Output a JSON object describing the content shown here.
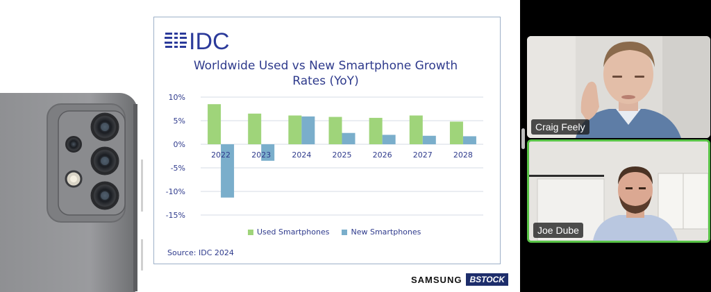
{
  "slide": {
    "logo_text": "IDC",
    "title_line1": "Worldwide Used vs New Smartphone Growth",
    "title_line2": "Rates (YoY)",
    "source": "Source: IDC 2024",
    "brand": {
      "samsung": "SAMSUNG",
      "bstock": "BSTOCK"
    }
  },
  "chart_data": {
    "type": "bar",
    "title": "Worldwide Used vs New Smartphone Growth Rates (YoY)",
    "categories": [
      "2022",
      "2023",
      "2024",
      "2025",
      "2026",
      "2027",
      "2028"
    ],
    "series": [
      {
        "name": "Used Smartphones",
        "color": "#9fd47a",
        "values": [
          8.5,
          6.5,
          6.1,
          5.8,
          5.6,
          6.1,
          4.8
        ]
      },
      {
        "name": "New Smartphones",
        "color": "#7aaecb",
        "values": [
          -11.3,
          -3.5,
          5.9,
          2.4,
          2.0,
          1.8,
          1.7
        ]
      }
    ],
    "y_ticks": [
      "10%",
      "5%",
      "0%",
      "-5%",
      "-10%",
      "-15%"
    ],
    "y_tick_values": [
      10,
      5,
      0,
      -5,
      -10,
      -15
    ],
    "ylim": [
      -15,
      10
    ],
    "legend_position": "bottom",
    "grid": true
  },
  "participants": [
    {
      "name": "Craig Feely",
      "active": false
    },
    {
      "name": "Joe Dube",
      "active": true,
      "highlight_color": "#59c447"
    }
  ]
}
